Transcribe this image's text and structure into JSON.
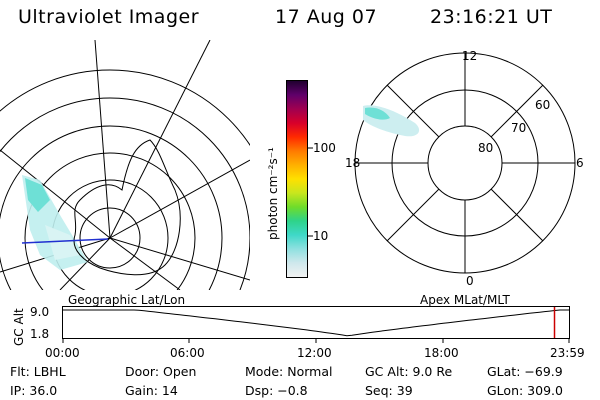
{
  "header": {
    "instrument": "Ultraviolet Imager",
    "date": "17 Aug 07",
    "time": "23:16:21 UT"
  },
  "colorbar": {
    "label": "photon cm⁻²s⁻¹",
    "ticks": [
      "100",
      "10"
    ],
    "scale": "log",
    "colors": [
      "#f2f2f2",
      "#cfe8ec",
      "#8fe0e0",
      "#3fd8c8",
      "#2ed38a",
      "#6fdc2a",
      "#c8e61e",
      "#ffe000",
      "#ffb000",
      "#ff7a00",
      "#ff2a00",
      "#d8002a",
      "#a00050",
      "#60006a",
      "#200030"
    ]
  },
  "left_map": {
    "label": "Geographic Lat/Lon",
    "icon": "geographic-map"
  },
  "right_map": {
    "label": "Apex MLat/MLT",
    "mlt_labels": [
      "12",
      "18",
      "6",
      "0"
    ],
    "mlat_labels": [
      "60",
      "70",
      "80"
    ]
  },
  "altitude_plot": {
    "ylabel": "GC Alt",
    "yticks": [
      "9.0",
      "1.8"
    ],
    "xticks": [
      "00:00",
      "06:00",
      "12:00",
      "18:00",
      "23:59"
    ],
    "marker_time": "23:16",
    "marker_color": "#cc0000"
  },
  "info": {
    "flt": "Flt: LBHL",
    "door": "Door: Open",
    "mode": "Mode: Normal",
    "gc_alt": "GC Alt: 9.0 Re",
    "glat": "GLat: −69.9",
    "ip": "IP: 36.0",
    "gain": "Gain: 14",
    "dsp": "Dsp:    −0.8",
    "seq": "Seq: 39",
    "glon": "GLon: 309.0"
  }
}
